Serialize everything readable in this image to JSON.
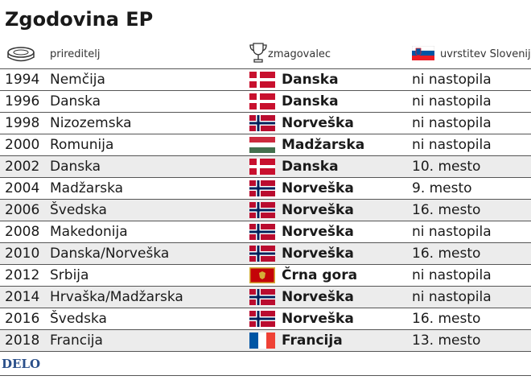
{
  "header": {
    "title": "Zgodovina EP",
    "columns": [
      "prireditelj",
      "zmagovalec",
      "uvrstitev Slovenije"
    ]
  },
  "table": {
    "rows": [
      [
        "1994",
        "Nemčija",
        "Danska",
        "ni nastopila"
      ],
      [
        "1996",
        "Danska",
        "Danska",
        "ni nastopila"
      ],
      [
        "1998",
        "Nizozemska",
        "Norveška",
        "ni nastopila"
      ],
      [
        "2000",
        "Romunija",
        "Madžarska",
        "ni nastopila"
      ],
      [
        "2002",
        "Danska",
        "Danska",
        "10. mesto"
      ],
      [
        "2004",
        "Madžarska",
        "Norveška",
        "9. mesto"
      ],
      [
        "2006",
        "Švedska",
        "Norveška",
        "16. mesto"
      ],
      [
        "2008",
        "Makedonija",
        "Norveška",
        "ni nastopila"
      ],
      [
        "2010",
        "Danska/Norveška",
        "Norveška",
        "16. mesto"
      ],
      [
        "2012",
        "Srbija",
        "Črna gora",
        "ni nastopila"
      ],
      [
        "2014",
        "Hrvaška/Madžarska",
        "Norveška",
        "ni nastopila"
      ],
      [
        "2016",
        "Švedska",
        "Norveška",
        "16. mesto"
      ],
      [
        "2018",
        "Francija",
        "Francija",
        "13. mesto"
      ]
    ]
  },
  "footer": {
    "logo": "DELO"
  }
}
